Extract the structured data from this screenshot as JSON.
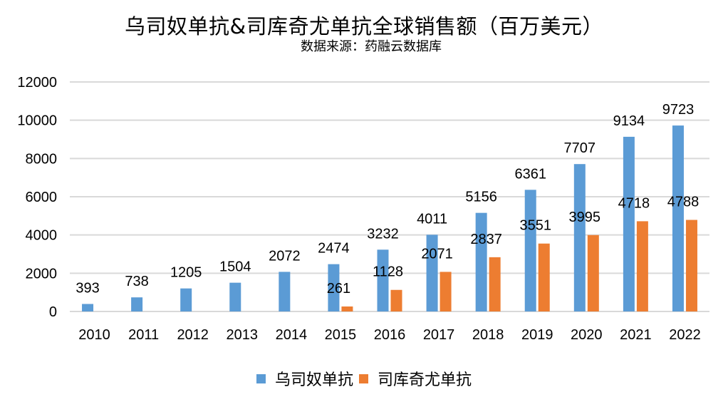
{
  "chart_data": {
    "type": "bar",
    "title": "乌司奴单抗&司库奇尤单抗全球销售额（百万美元）",
    "subtitle": "数据来源：药融云数据库",
    "xlabel": "",
    "ylabel": "",
    "ylim": [
      0,
      12000
    ],
    "yticks": [
      0,
      2000,
      4000,
      6000,
      8000,
      10000,
      12000
    ],
    "grid": true,
    "legend_position": "bottom",
    "categories": [
      "2010",
      "2011",
      "2012",
      "2013",
      "2014",
      "2015",
      "2016",
      "2017",
      "2018",
      "2019",
      "2020",
      "2021",
      "2022"
    ],
    "series": [
      {
        "name": "乌司奴单抗",
        "color": "#5B9BD5",
        "values": [
          393,
          738,
          1205,
          1504,
          2072,
          2474,
          3232,
          4011,
          5156,
          6361,
          7707,
          9134,
          9723
        ]
      },
      {
        "name": "司库奇尤单抗",
        "color": "#ED7D31",
        "values": [
          null,
          null,
          null,
          null,
          null,
          261,
          1128,
          2071,
          2837,
          3551,
          3995,
          4718,
          4788
        ]
      }
    ]
  }
}
